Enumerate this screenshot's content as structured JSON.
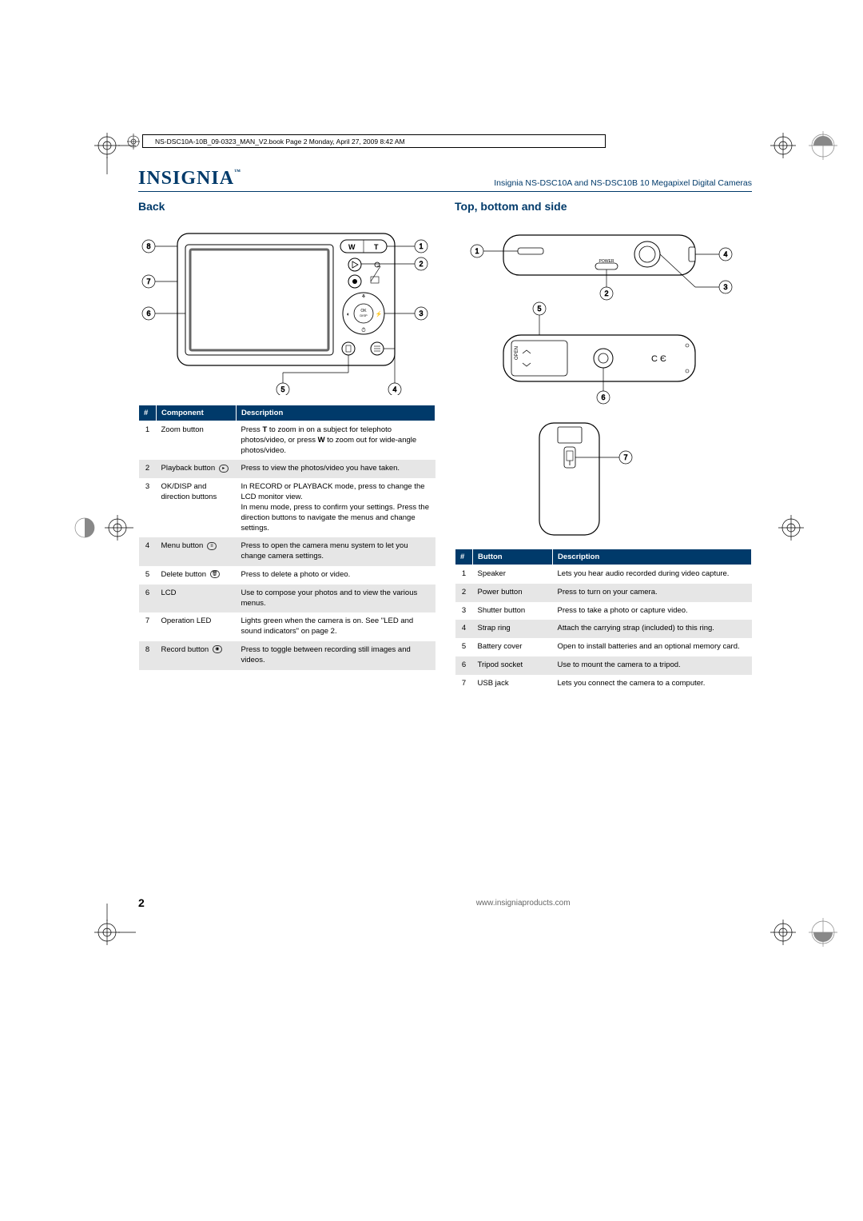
{
  "page_info_bar": "NS-DSC10A-10B_09-0323_MAN_V2.book  Page 2  Monday, April 27, 2009  8:42 AM",
  "brand": "INSIGNIA",
  "brand_tm": "™",
  "header_subtitle": "Insignia NS-DSC10A and NS-DSC10B 10 Megapixel Digital Cameras",
  "section_back": "Back",
  "section_top": "Top, bottom and side",
  "back_table": {
    "head": [
      "#",
      "Component",
      "Description"
    ],
    "rows": [
      {
        "n": "1",
        "c": "Zoom button",
        "icon": "",
        "d": "Press T to zoom in on a subject for telephoto photos/video, or press W to zoom out for wide-angle photos/video."
      },
      {
        "n": "2",
        "c": "Playback button",
        "icon": "▸",
        "d": "Press to view the photos/video you have taken."
      },
      {
        "n": "3",
        "c": "OK/DISP and direction buttons",
        "icon": "",
        "d": "In RECORD or PLAYBACK mode, press to change the LCD monitor view.\nIn menu mode, press to confirm your settings. Press the direction buttons to navigate the menus and change settings."
      },
      {
        "n": "4",
        "c": "Menu button",
        "icon": "≡",
        "d": "Press to open the camera menu system to let you change camera settings."
      },
      {
        "n": "5",
        "c": "Delete button",
        "icon": "🗑",
        "d": "Press to delete a photo or video."
      },
      {
        "n": "6",
        "c": "LCD",
        "icon": "",
        "d": "Use to compose your photos and to view the various menus."
      },
      {
        "n": "7",
        "c": "Operation LED",
        "icon": "",
        "d": "Lights green when the camera is on. See \"LED and sound indicators\" on page 2."
      },
      {
        "n": "8",
        "c": "Record button",
        "icon": "◉",
        "d": "Press to toggle between recording still images and videos."
      }
    ]
  },
  "top_table": {
    "head": [
      "#",
      "Button",
      "Description"
    ],
    "rows": [
      {
        "n": "1",
        "c": "Speaker",
        "d": "Lets you hear audio recorded during video capture."
      },
      {
        "n": "2",
        "c": "Power button",
        "d": "Press to turn on your camera."
      },
      {
        "n": "3",
        "c": "Shutter button",
        "d": "Press to take a photo or capture video."
      },
      {
        "n": "4",
        "c": "Strap ring",
        "d": "Attach the carrying strap (included) to this ring."
      },
      {
        "n": "5",
        "c": "Battery cover",
        "d": "Open to install batteries and an optional memory card."
      },
      {
        "n": "6",
        "c": "Tripod socket",
        "d": "Use to mount the camera to a tripod."
      },
      {
        "n": "7",
        "c": "USB jack",
        "d": "Lets you connect the camera to a computer."
      }
    ]
  },
  "footer_page": "2",
  "footer_url": "www.insigniaproducts.com",
  "colors": {
    "brand_blue": "#003a6a",
    "row_shade": "#e6e6e6"
  },
  "back_diagram": {
    "callouts": [
      "1",
      "2",
      "3",
      "4",
      "5",
      "6",
      "7",
      "8"
    ],
    "labels": {
      "ok": "OK\nDISP",
      "w": "W",
      "t": "T"
    }
  },
  "top_diagram": {
    "callouts_top": [
      "1",
      "2",
      "3",
      "4"
    ],
    "callouts_bottom": [
      "5",
      "6"
    ],
    "callouts_side": [
      "7"
    ],
    "labels": {
      "power": "POWER",
      "open": "OPEN",
      "ce": "C E"
    }
  }
}
